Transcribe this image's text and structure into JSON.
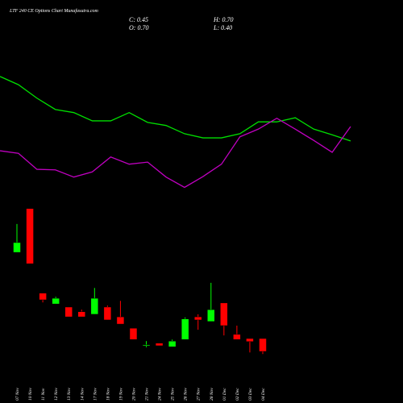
{
  "chart_data": {
    "type": "candlestick",
    "title": "LTF 240 CE Options Chart Munafasutra.com",
    "ohlc_labels": [
      "C: 0.45",
      "H: 0.70",
      "O: 0.70",
      "L: 0.40"
    ],
    "categories": [
      "07 Nov",
      "10 Nov",
      "11 Nov",
      "12 Nov",
      "13 Nov",
      "14 Nov",
      "17 Nov",
      "18 Nov",
      "19 Nov",
      "20 Nov",
      "21 Nov",
      "24 Nov",
      "25 Nov",
      "26 Nov",
      "27 Nov",
      "28 Nov",
      "01 Dec",
      "02 Dec",
      "03 Dec",
      "04 Dec"
    ],
    "open": [
      2.37,
      3.22,
      1.58,
      1.37,
      1.31,
      1.22,
      1.17,
      1.31,
      1.12,
      0.9,
      0.56,
      0.61,
      0.54,
      0.68,
      1.12,
      1.03,
      1.39,
      0.78,
      0.7,
      0.7
    ],
    "high": [
      2.92,
      3.22,
      1.58,
      1.51,
      1.31,
      1.26,
      1.68,
      1.34,
      1.43,
      0.9,
      0.65,
      0.61,
      0.68,
      1.11,
      1.17,
      1.78,
      1.39,
      0.95,
      0.7,
      0.7
    ],
    "low": [
      2.37,
      2.15,
      1.4,
      1.37,
      1.12,
      1.12,
      1.17,
      1.06,
      0.98,
      0.68,
      0.53,
      0.56,
      0.54,
      0.68,
      0.87,
      1.03,
      0.76,
      0.68,
      0.43,
      0.4
    ],
    "close": [
      2.56,
      2.15,
      1.45,
      1.48,
      1.12,
      1.12,
      1.48,
      1.06,
      0.98,
      0.68,
      0.58,
      0.56,
      0.65,
      1.08,
      1.06,
      1.26,
      0.95,
      0.68,
      0.64,
      0.45
    ],
    "up_color": "#00ff00",
    "down_color": "#ff0000",
    "series": [
      {
        "color": "#00e000",
        "values": [
          5.78,
          5.62,
          5.36,
          5.14,
          5.08,
          4.92,
          4.92,
          5.08,
          4.89,
          4.83,
          4.67,
          4.59,
          4.59,
          4.67,
          4.9,
          4.9,
          4.98,
          4.76,
          4.65,
          4.53
        ]
      },
      {
        "color": "#c000c0",
        "values": [
          4.34,
          4.29,
          3.98,
          3.97,
          3.83,
          3.93,
          4.22,
          4.08,
          4.12,
          3.83,
          3.63,
          3.84,
          4.08,
          4.61,
          4.76,
          4.97,
          4.76,
          4.54,
          4.31,
          4.81
        ]
      }
    ],
    "ylim": [
      0,
      7.25
    ]
  }
}
